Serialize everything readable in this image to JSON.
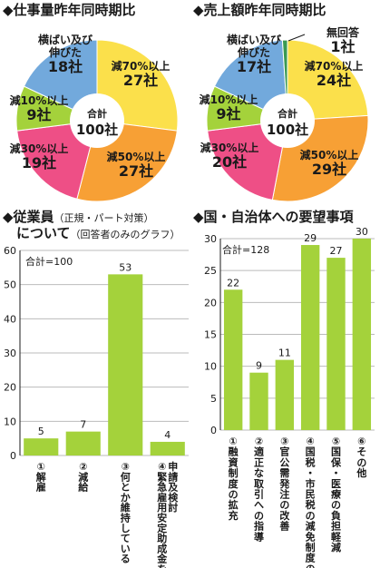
{
  "chart_data": [
    {
      "type": "pie",
      "title": "◆仕事量昨年同時期比",
      "center_label": "合計",
      "center_value": "100社",
      "total": 100,
      "unit": "社",
      "categories": [
        "減70%以上",
        "減50%以上",
        "減30%以上",
        "減10%以上",
        "横ばい及び伸びた"
      ],
      "values": [
        27,
        27,
        19,
        9,
        18
      ],
      "label_lines": [
        [
          "減70%以上",
          "27社"
        ],
        [
          "減50%以上",
          "27社"
        ],
        [
          "減30%以上",
          "19社"
        ],
        [
          "減10%以上",
          "9社"
        ],
        [
          "横ばい及び",
          "伸びた",
          "18社"
        ]
      ],
      "colors": [
        "#fbe04b",
        "#f7a035",
        "#ee4f86",
        "#a4d23b",
        "#72a9dc"
      ]
    },
    {
      "type": "pie",
      "title": "◆売上額昨年同時期比",
      "center_label": "合計",
      "center_value": "100社",
      "total": 100,
      "unit": "社",
      "categories": [
        "減70%以上",
        "減50%以上",
        "減30%以上",
        "減10%以上",
        "横ばい及び伸びた",
        "無回答"
      ],
      "values": [
        24,
        29,
        20,
        9,
        17,
        1
      ],
      "label_lines": [
        [
          "減70%以上",
          "24社"
        ],
        [
          "減50%以上",
          "29社"
        ],
        [
          "減30%以上",
          "20社"
        ],
        [
          "減10%以上",
          "9社"
        ],
        [
          "横ばい及び",
          "伸びた",
          "17社"
        ],
        [
          "無回答",
          "1社"
        ]
      ],
      "colors": [
        "#fbe04b",
        "#f7a035",
        "#ee4f86",
        "#a4d23b",
        "#72a9dc",
        "#3a9a52"
      ]
    },
    {
      "type": "bar",
      "title": "◆従業員",
      "title_small": "（正規・パート対策）",
      "title_line2": "について",
      "title_line2_small": "（回答者のみのグラフ）",
      "total_label": "合計=100",
      "categories": [
        "①解雇",
        "②減給",
        "③何とか維持している",
        "④緊急雇用安定助成金を申請及検討"
      ],
      "category_columns": [
        [
          "①解雇"
        ],
        [
          "②減給"
        ],
        [
          "③何とか維持している"
        ],
        [
          "④緊急雇用安定助成金を",
          "申請及検討"
        ]
      ],
      "values": [
        5,
        7,
        53,
        4
      ],
      "ylim": [
        0,
        60
      ],
      "yticks": [
        0,
        10,
        20,
        30,
        40,
        50,
        60
      ],
      "color": "#a4d23b"
    },
    {
      "type": "bar",
      "title": "◆国・自治体への要望事項",
      "total_label": "合計=128",
      "categories": [
        "①融資制度の拡充",
        "②適正な取引への指導",
        "③官公需発注の改善",
        "④国税・市民税の減免制度の拡充",
        "⑤国保・医療の負担軽減",
        "⑥その他"
      ],
      "values": [
        22,
        9,
        11,
        29,
        27,
        30
      ],
      "ylim": [
        0,
        30
      ],
      "yticks": [
        0,
        5,
        10,
        15,
        20,
        25,
        30
      ],
      "color": "#a4d23b"
    }
  ]
}
